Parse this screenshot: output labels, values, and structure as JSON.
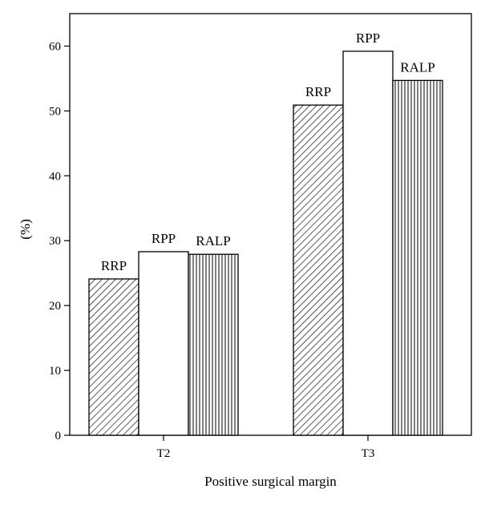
{
  "chart_data": {
    "type": "bar",
    "title": "",
    "xlabel": "Positive surgical margin",
    "ylabel": "(%)",
    "ylim": [
      0,
      65
    ],
    "yticks": [
      0,
      10,
      20,
      30,
      40,
      50,
      60
    ],
    "grid": false,
    "legend": "none",
    "categories": [
      "T2",
      "T3"
    ],
    "series": [
      {
        "name": "RRP",
        "values": [
          24.1,
          50.9
        ],
        "pattern": "diagonal-hatch"
      },
      {
        "name": "RPP",
        "values": [
          28.3,
          59.2
        ],
        "pattern": "empty"
      },
      {
        "name": "RALP",
        "values": [
          27.9,
          54.7
        ],
        "pattern": "vertical-hatch"
      }
    ]
  },
  "colors": {
    "axis": "#000000",
    "bar_fill": "#ffffff",
    "hatch": "#000000"
  }
}
